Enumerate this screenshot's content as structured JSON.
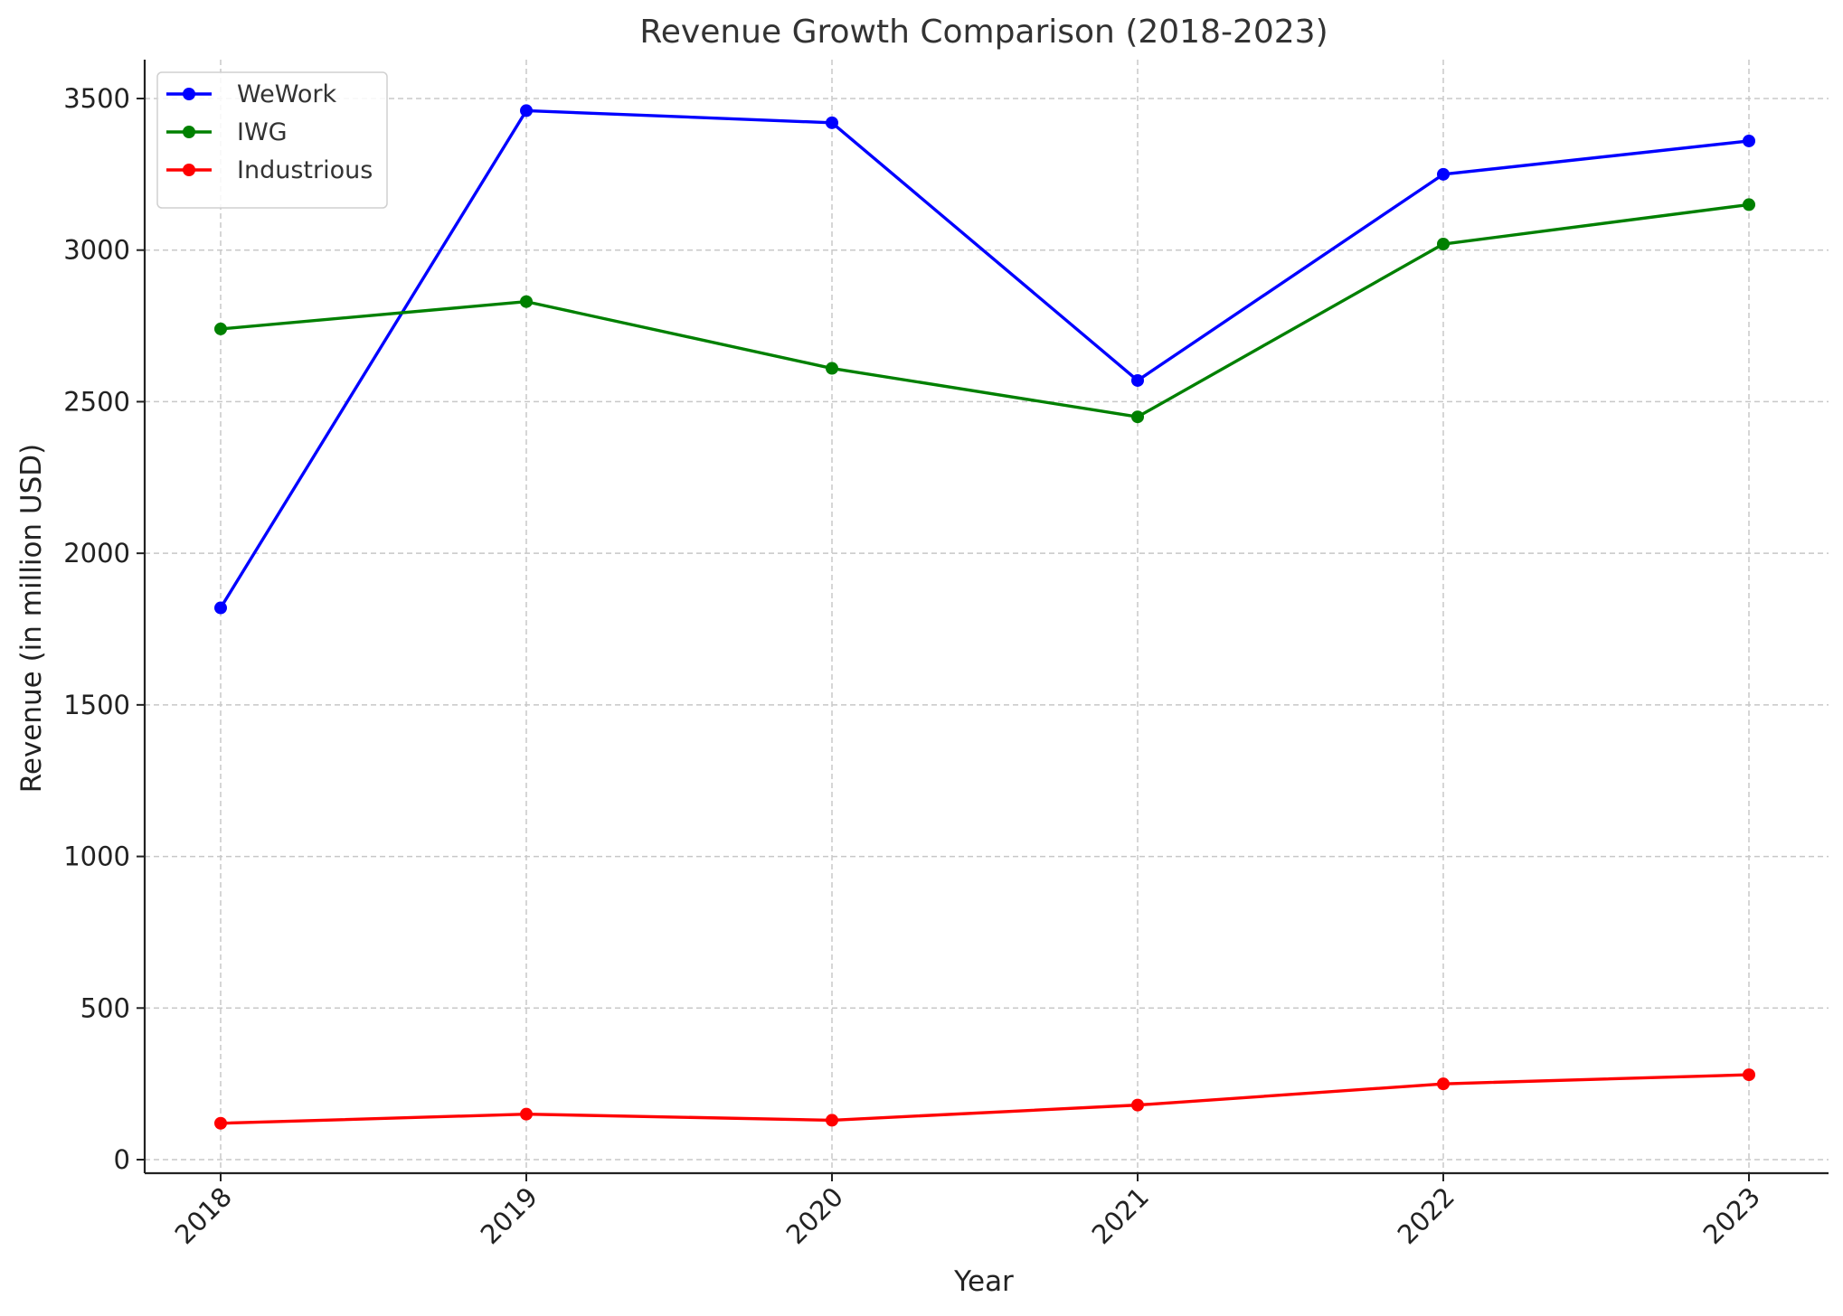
{
  "chart_data": {
    "type": "line",
    "title": "Revenue Growth Comparison (2018-2023)",
    "xlabel": "Year",
    "ylabel": "Revenue (in million USD)",
    "categories": [
      "2018",
      "2019",
      "2020",
      "2021",
      "2022",
      "2023"
    ],
    "ylim": [
      -45,
      3630
    ],
    "yticks": [
      0,
      500,
      1000,
      1500,
      2000,
      2500,
      3000,
      3500
    ],
    "grid": true,
    "legend_position": "top-left",
    "series": [
      {
        "name": "WeWork",
        "color": "#0000ff",
        "marker": "circle",
        "values": [
          1820,
          3460,
          3420,
          2570,
          3250,
          3360
        ]
      },
      {
        "name": "IWG",
        "color": "#008000",
        "marker": "circle",
        "values": [
          2740,
          2830,
          2610,
          2450,
          3020,
          3150
        ]
      },
      {
        "name": "Industrious",
        "color": "#ff0000",
        "marker": "circle",
        "values": [
          120,
          150,
          130,
          180,
          250,
          280
        ]
      }
    ]
  }
}
